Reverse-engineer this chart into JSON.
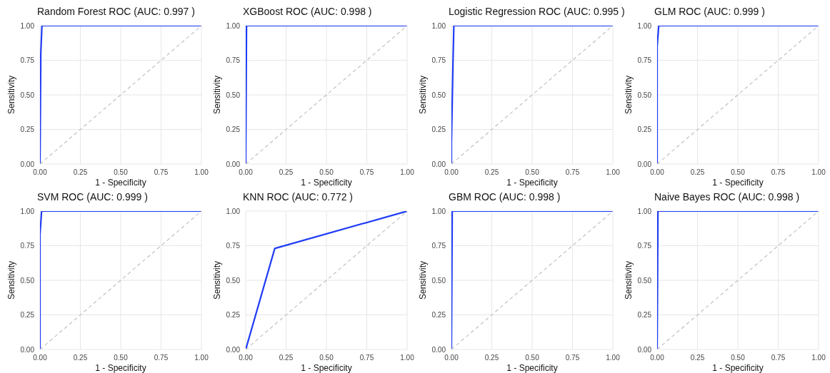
{
  "chart_data": [
    {
      "type": "line",
      "title": "Random Forest ROC (AUC: 0.997 )",
      "xlabel": "1 - Specificity",
      "ylabel": "Sensitivity",
      "xlim": [
        0,
        1
      ],
      "ylim": [
        0,
        1
      ],
      "xticks": [
        {
          "value": 0,
          "label": "0.00"
        },
        {
          "value": 0.25,
          "label": "0.25"
        },
        {
          "value": 0.5,
          "label": "0.50"
        },
        {
          "value": 0.75,
          "label": "0.75"
        },
        {
          "value": 1,
          "label": "1.00"
        }
      ],
      "yticks": [
        {
          "value": 0,
          "label": "0.00"
        },
        {
          "value": 0.25,
          "label": "0.25"
        },
        {
          "value": 0.5,
          "label": "0.50"
        },
        {
          "value": 0.75,
          "label": "0.75"
        },
        {
          "value": 1,
          "label": "1.00"
        }
      ],
      "grid": true,
      "series": [
        {
          "color": "#1f3cf5",
          "x": [
            0,
            0.005,
            0.012,
            1
          ],
          "values": [
            0,
            0.8,
            1,
            1
          ]
        },
        {
          "color": "#c0c0c0",
          "line_style": "dashed",
          "x": [
            0,
            1
          ],
          "values": [
            0,
            1
          ]
        }
      ]
    },
    {
      "type": "line",
      "title": "XGBoost ROC (AUC: 0.998 )",
      "xlabel": "1 - Specificity",
      "ylabel": "Sensitivity",
      "xlim": [
        0,
        1
      ],
      "ylim": [
        0,
        1
      ],
      "xticks": [
        {
          "value": 0,
          "label": "0.00"
        },
        {
          "value": 0.25,
          "label": "0.25"
        },
        {
          "value": 0.5,
          "label": "0.50"
        },
        {
          "value": 0.75,
          "label": "0.75"
        },
        {
          "value": 1,
          "label": "1.00"
        }
      ],
      "yticks": [
        {
          "value": 0,
          "label": "0.00"
        },
        {
          "value": 0.25,
          "label": "0.25"
        },
        {
          "value": 0.5,
          "label": "0.50"
        },
        {
          "value": 0.75,
          "label": "0.75"
        },
        {
          "value": 1,
          "label": "1.00"
        }
      ],
      "grid": true,
      "series": [
        {
          "color": "#1f3cf5",
          "x": [
            0,
            0.005,
            1
          ],
          "values": [
            0,
            1,
            1
          ]
        },
        {
          "color": "#c0c0c0",
          "line_style": "dashed",
          "x": [
            0,
            1
          ],
          "values": [
            0,
            1
          ]
        }
      ]
    },
    {
      "type": "line",
      "title": "Logistic Regression ROC (AUC: 0.995 )",
      "xlabel": "1 - Specificity",
      "ylabel": "Sensitivity",
      "xlim": [
        0,
        1
      ],
      "ylim": [
        0,
        1
      ],
      "xticks": [
        {
          "value": 0,
          "label": "0.00"
        },
        {
          "value": 0.25,
          "label": "0.25"
        },
        {
          "value": 0.5,
          "label": "0.50"
        },
        {
          "value": 0.75,
          "label": "0.75"
        },
        {
          "value": 1,
          "label": "1.00"
        }
      ],
      "yticks": [
        {
          "value": 0,
          "label": "0.00"
        },
        {
          "value": 0.25,
          "label": "0.25"
        },
        {
          "value": 0.5,
          "label": "0.50"
        },
        {
          "value": 0.75,
          "label": "0.75"
        },
        {
          "value": 1,
          "label": "1.00"
        }
      ],
      "grid": true,
      "series": [
        {
          "color": "#1f3cf5",
          "x": [
            0,
            0,
            0.01,
            0.015,
            1
          ],
          "values": [
            0,
            0.15,
            0.75,
            1,
            1
          ]
        },
        {
          "color": "#c0c0c0",
          "line_style": "dashed",
          "x": [
            0,
            1
          ],
          "values": [
            0,
            1
          ]
        }
      ]
    },
    {
      "type": "line",
      "title": "GLM ROC (AUC: 0.999 )",
      "xlabel": "1 - Specificity",
      "ylabel": "Sensitivity",
      "xlim": [
        0,
        1
      ],
      "ylim": [
        0,
        1
      ],
      "xticks": [
        {
          "value": 0,
          "label": "0.00"
        },
        {
          "value": 0.25,
          "label": "0.25"
        },
        {
          "value": 0.5,
          "label": "0.50"
        },
        {
          "value": 0.75,
          "label": "0.75"
        },
        {
          "value": 1,
          "label": "1.00"
        }
      ],
      "yticks": [
        {
          "value": 0,
          "label": "0.00"
        },
        {
          "value": 0.25,
          "label": "0.25"
        },
        {
          "value": 0.5,
          "label": "0.50"
        },
        {
          "value": 0.75,
          "label": "0.75"
        },
        {
          "value": 1,
          "label": "1.00"
        }
      ],
      "grid": true,
      "series": [
        {
          "color": "#1f3cf5",
          "x": [
            0,
            0,
            0.01,
            1
          ],
          "values": [
            0,
            0.85,
            1,
            1
          ]
        },
        {
          "color": "#c0c0c0",
          "line_style": "dashed",
          "x": [
            0,
            1
          ],
          "values": [
            0,
            1
          ]
        }
      ]
    },
    {
      "type": "line",
      "title": "SVM ROC (AUC: 0.999 )",
      "xlabel": "1 - Specificity",
      "ylabel": "Sensitivity",
      "xlim": [
        0,
        1
      ],
      "ylim": [
        0,
        1
      ],
      "xticks": [
        {
          "value": 0,
          "label": "0.00"
        },
        {
          "value": 0.25,
          "label": "0.25"
        },
        {
          "value": 0.5,
          "label": "0.50"
        },
        {
          "value": 0.75,
          "label": "0.75"
        },
        {
          "value": 1,
          "label": "1.00"
        }
      ],
      "yticks": [
        {
          "value": 0,
          "label": "0.00"
        },
        {
          "value": 0.25,
          "label": "0.25"
        },
        {
          "value": 0.5,
          "label": "0.50"
        },
        {
          "value": 0.75,
          "label": "0.75"
        },
        {
          "value": 1,
          "label": "1.00"
        }
      ],
      "grid": true,
      "series": [
        {
          "color": "#1f3cf5",
          "x": [
            0,
            0,
            0.01,
            1
          ],
          "values": [
            0,
            0.83,
            1,
            1
          ]
        },
        {
          "color": "#c0c0c0",
          "line_style": "dashed",
          "x": [
            0,
            1
          ],
          "values": [
            0,
            1
          ]
        }
      ]
    },
    {
      "type": "line",
      "title": "KNN ROC (AUC: 0.772 )",
      "xlabel": "1 - Specificity",
      "ylabel": "Sensitivity",
      "xlim": [
        0,
        1
      ],
      "ylim": [
        0,
        1
      ],
      "xticks": [
        {
          "value": 0,
          "label": "0.00"
        },
        {
          "value": 0.25,
          "label": "0.25"
        },
        {
          "value": 0.5,
          "label": "0.50"
        },
        {
          "value": 0.75,
          "label": "0.75"
        },
        {
          "value": 1,
          "label": "1.00"
        }
      ],
      "yticks": [
        {
          "value": 0,
          "label": "0.00"
        },
        {
          "value": 0.25,
          "label": "0.25"
        },
        {
          "value": 0.5,
          "label": "0.50"
        },
        {
          "value": 0.75,
          "label": "0.75"
        },
        {
          "value": 1,
          "label": "1.00"
        }
      ],
      "grid": true,
      "series": [
        {
          "color": "#1f3cf5",
          "x": [
            0,
            0.18,
            1
          ],
          "values": [
            0,
            0.73,
            1
          ]
        },
        {
          "color": "#c0c0c0",
          "line_style": "dashed",
          "x": [
            0,
            1
          ],
          "values": [
            0,
            1
          ]
        }
      ]
    },
    {
      "type": "line",
      "title": "GBM ROC (AUC: 0.998 )",
      "xlabel": "1 - Specificity",
      "ylabel": "Sensitivity",
      "xlim": [
        0,
        1
      ],
      "ylim": [
        0,
        1
      ],
      "xticks": [
        {
          "value": 0,
          "label": "0.00"
        },
        {
          "value": 0.25,
          "label": "0.25"
        },
        {
          "value": 0.5,
          "label": "0.50"
        },
        {
          "value": 0.75,
          "label": "0.75"
        },
        {
          "value": 1,
          "label": "1.00"
        }
      ],
      "yticks": [
        {
          "value": 0,
          "label": "0.00"
        },
        {
          "value": 0.25,
          "label": "0.25"
        },
        {
          "value": 0.5,
          "label": "0.50"
        },
        {
          "value": 0.75,
          "label": "0.75"
        },
        {
          "value": 1,
          "label": "1.00"
        }
      ],
      "grid": true,
      "series": [
        {
          "color": "#1f3cf5",
          "x": [
            0,
            0.005,
            1
          ],
          "values": [
            0,
            1,
            1
          ]
        },
        {
          "color": "#c0c0c0",
          "line_style": "dashed",
          "x": [
            0,
            1
          ],
          "values": [
            0,
            1
          ]
        }
      ]
    },
    {
      "type": "line",
      "title": "Naive Bayes ROC (AUC: 0.998 )",
      "xlabel": "1 - Specificity",
      "ylabel": "Sensitivity",
      "xlim": [
        0,
        1
      ],
      "ylim": [
        0,
        1
      ],
      "xticks": [
        {
          "value": 0,
          "label": "0.00"
        },
        {
          "value": 0.25,
          "label": "0.25"
        },
        {
          "value": 0.5,
          "label": "0.50"
        },
        {
          "value": 0.75,
          "label": "0.75"
        },
        {
          "value": 1,
          "label": "1.00"
        }
      ],
      "yticks": [
        {
          "value": 0,
          "label": "0.00"
        },
        {
          "value": 0.25,
          "label": "0.25"
        },
        {
          "value": 0.5,
          "label": "0.50"
        },
        {
          "value": 0.75,
          "label": "0.75"
        },
        {
          "value": 1,
          "label": "1.00"
        }
      ],
      "grid": true,
      "series": [
        {
          "color": "#1f3cf5",
          "x": [
            0,
            0.005,
            1
          ],
          "values": [
            0,
            1,
            1
          ]
        },
        {
          "color": "#c0c0c0",
          "line_style": "dashed",
          "x": [
            0,
            1
          ],
          "values": [
            0,
            1
          ]
        }
      ]
    }
  ]
}
